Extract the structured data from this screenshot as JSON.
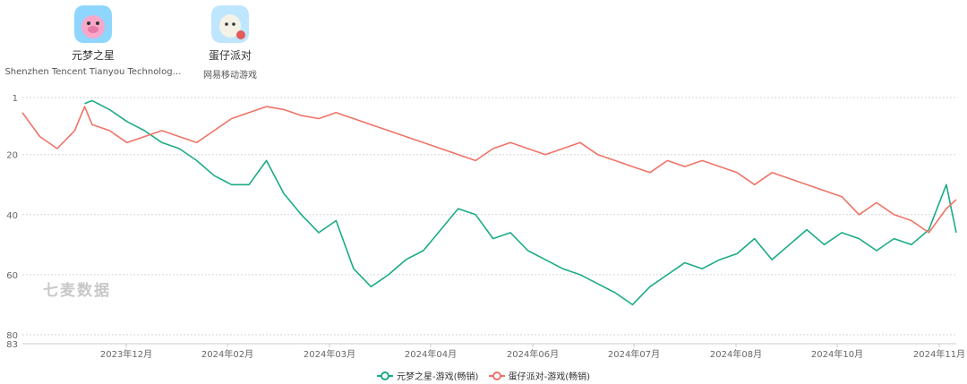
{
  "apps": [
    {
      "name": "元梦之星",
      "publisher": "Shenzhen Tencent Tianyou Technolog…",
      "icon": "pink-pig-app-icon",
      "icon_colors": [
        "#8fd6ff",
        "#f7a8c9"
      ]
    },
    {
      "name": "蛋仔派对",
      "publisher": "网易移动游戏",
      "icon": "egg-party-app-icon",
      "icon_colors": [
        "#bfe6ff",
        "#f4f1e6"
      ]
    }
  ],
  "watermark": "七麦数据",
  "chart_data": {
    "type": "line",
    "ylabel": "",
    "ytick_labels": [
      "1",
      "20",
      "40",
      "60",
      "80",
      "83"
    ],
    "ylim": [
      1,
      83
    ],
    "y_inverted": true,
    "x_tick_labels": [
      "2023年12月",
      "2024年02月",
      "2024年03月",
      "2024年04月",
      "2024年06月",
      "2024年07月",
      "2024年08月",
      "2024年10月",
      "2024年11月"
    ],
    "grid": "horizontal-dotted",
    "legend_position": "bottom-center",
    "x_start": "2023-10-29",
    "x_end": "2024-11-07",
    "x_dates": [
      "2023-10-29",
      "2023-11-05",
      "2023-11-12",
      "2023-11-19",
      "2023-11-23",
      "2023-11-26",
      "2023-12-03",
      "2023-12-10",
      "2023-12-17",
      "2023-12-24",
      "2023-12-31",
      "2024-01-07",
      "2024-01-14",
      "2024-01-21",
      "2024-01-28",
      "2024-02-04",
      "2024-02-11",
      "2024-02-18",
      "2024-02-25",
      "2024-03-03",
      "2024-03-10",
      "2024-03-17",
      "2024-03-24",
      "2024-03-31",
      "2024-04-07",
      "2024-04-14",
      "2024-04-21",
      "2024-04-28",
      "2024-05-05",
      "2024-05-12",
      "2024-05-19",
      "2024-05-26",
      "2024-06-02",
      "2024-06-09",
      "2024-06-16",
      "2024-06-23",
      "2024-06-30",
      "2024-07-07",
      "2024-07-14",
      "2024-07-21",
      "2024-07-28",
      "2024-08-04",
      "2024-08-11",
      "2024-08-18",
      "2024-08-25",
      "2024-09-01",
      "2024-09-08",
      "2024-09-15",
      "2024-09-22",
      "2024-09-29",
      "2024-10-06",
      "2024-10-13",
      "2024-10-20",
      "2024-10-27",
      "2024-11-03",
      "2024-11-07"
    ],
    "series": [
      {
        "name": "元梦之星-游戏(畅销)",
        "color": "#1aab86",
        "values": [
          null,
          null,
          null,
          null,
          3,
          2,
          5,
          9,
          12,
          16,
          18,
          22,
          27,
          30,
          30,
          22,
          33,
          40,
          46,
          42,
          58,
          64,
          60,
          55,
          52,
          45,
          38,
          40,
          48,
          46,
          52,
          55,
          58,
          60,
          63,
          66,
          70,
          64,
          60,
          56,
          58,
          55,
          53,
          48,
          55,
          50,
          45,
          50,
          46,
          48,
          52,
          48,
          50,
          45,
          30,
          46
        ]
      },
      {
        "name": "蛋仔派对-游戏(畅销)",
        "color": "#ef7367",
        "values": [
          6,
          14,
          18,
          12,
          4,
          10,
          12,
          16,
          14,
          12,
          14,
          16,
          12,
          8,
          6,
          4,
          5,
          7,
          8,
          6,
          8,
          10,
          12,
          14,
          16,
          18,
          20,
          22,
          18,
          16,
          18,
          20,
          18,
          16,
          20,
          22,
          24,
          26,
          22,
          24,
          22,
          24,
          26,
          30,
          26,
          28,
          30,
          32,
          34,
          40,
          36,
          40,
          42,
          46,
          38,
          35
        ]
      }
    ]
  }
}
